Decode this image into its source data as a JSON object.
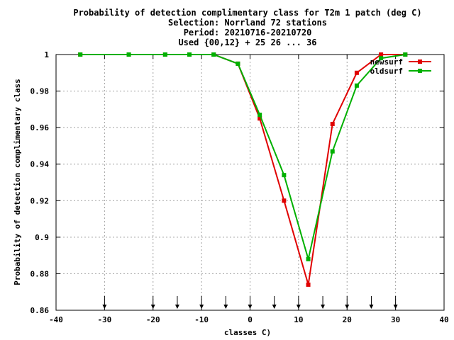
{
  "chart_data": {
    "type": "line",
    "title_lines": [
      "Probability of detection complimentary class  for T2m 1 patch (deg C)",
      "Selection: Norrland     72 stations",
      "Period: 20210716-20210720",
      "Used {00,12} + 25 26 ... 36"
    ],
    "xlabel": "classes C)",
    "ylabel": "Probability of detection complimentary class",
    "xlim": [
      -40,
      40
    ],
    "ylim": [
      0.86,
      1.0
    ],
    "xticks": [
      -40,
      -30,
      -20,
      -10,
      0,
      10,
      20,
      30,
      40
    ],
    "yticks": [
      0.86,
      0.88,
      0.9,
      0.92,
      0.94,
      0.96,
      0.98,
      1
    ],
    "ytick_labels": [
      "0.86",
      "0.88",
      "0.9",
      "0.92",
      "0.94",
      "0.96",
      "0.98",
      "1"
    ],
    "grid": true,
    "legend_position": "top-right",
    "series": [
      {
        "name": "newsurf",
        "color": "#e00000",
        "x": [
          -35,
          -25,
          -17.5,
          -12.5,
          -7.5,
          -2.5,
          2,
          7,
          12,
          17,
          22,
          27,
          32
        ],
        "y": [
          1.0,
          1.0,
          1.0,
          1.0,
          1.0,
          0.995,
          0.965,
          0.92,
          0.874,
          0.962,
          0.99,
          1.0,
          1.0
        ]
      },
      {
        "name": "oldsurf",
        "color": "#00b000",
        "x": [
          -35,
          -25,
          -17.5,
          -12.5,
          -7.5,
          -2.5,
          2,
          7,
          12,
          17,
          22,
          27,
          32
        ],
        "y": [
          1.0,
          1.0,
          1.0,
          1.0,
          1.0,
          0.995,
          0.967,
          0.934,
          0.888,
          0.947,
          0.983,
          0.998,
          1.0
        ]
      }
    ],
    "arrow_markers_x": [
      -30,
      -20,
      -15,
      -10,
      -5,
      0,
      5,
      10,
      15,
      20,
      25,
      30
    ]
  }
}
